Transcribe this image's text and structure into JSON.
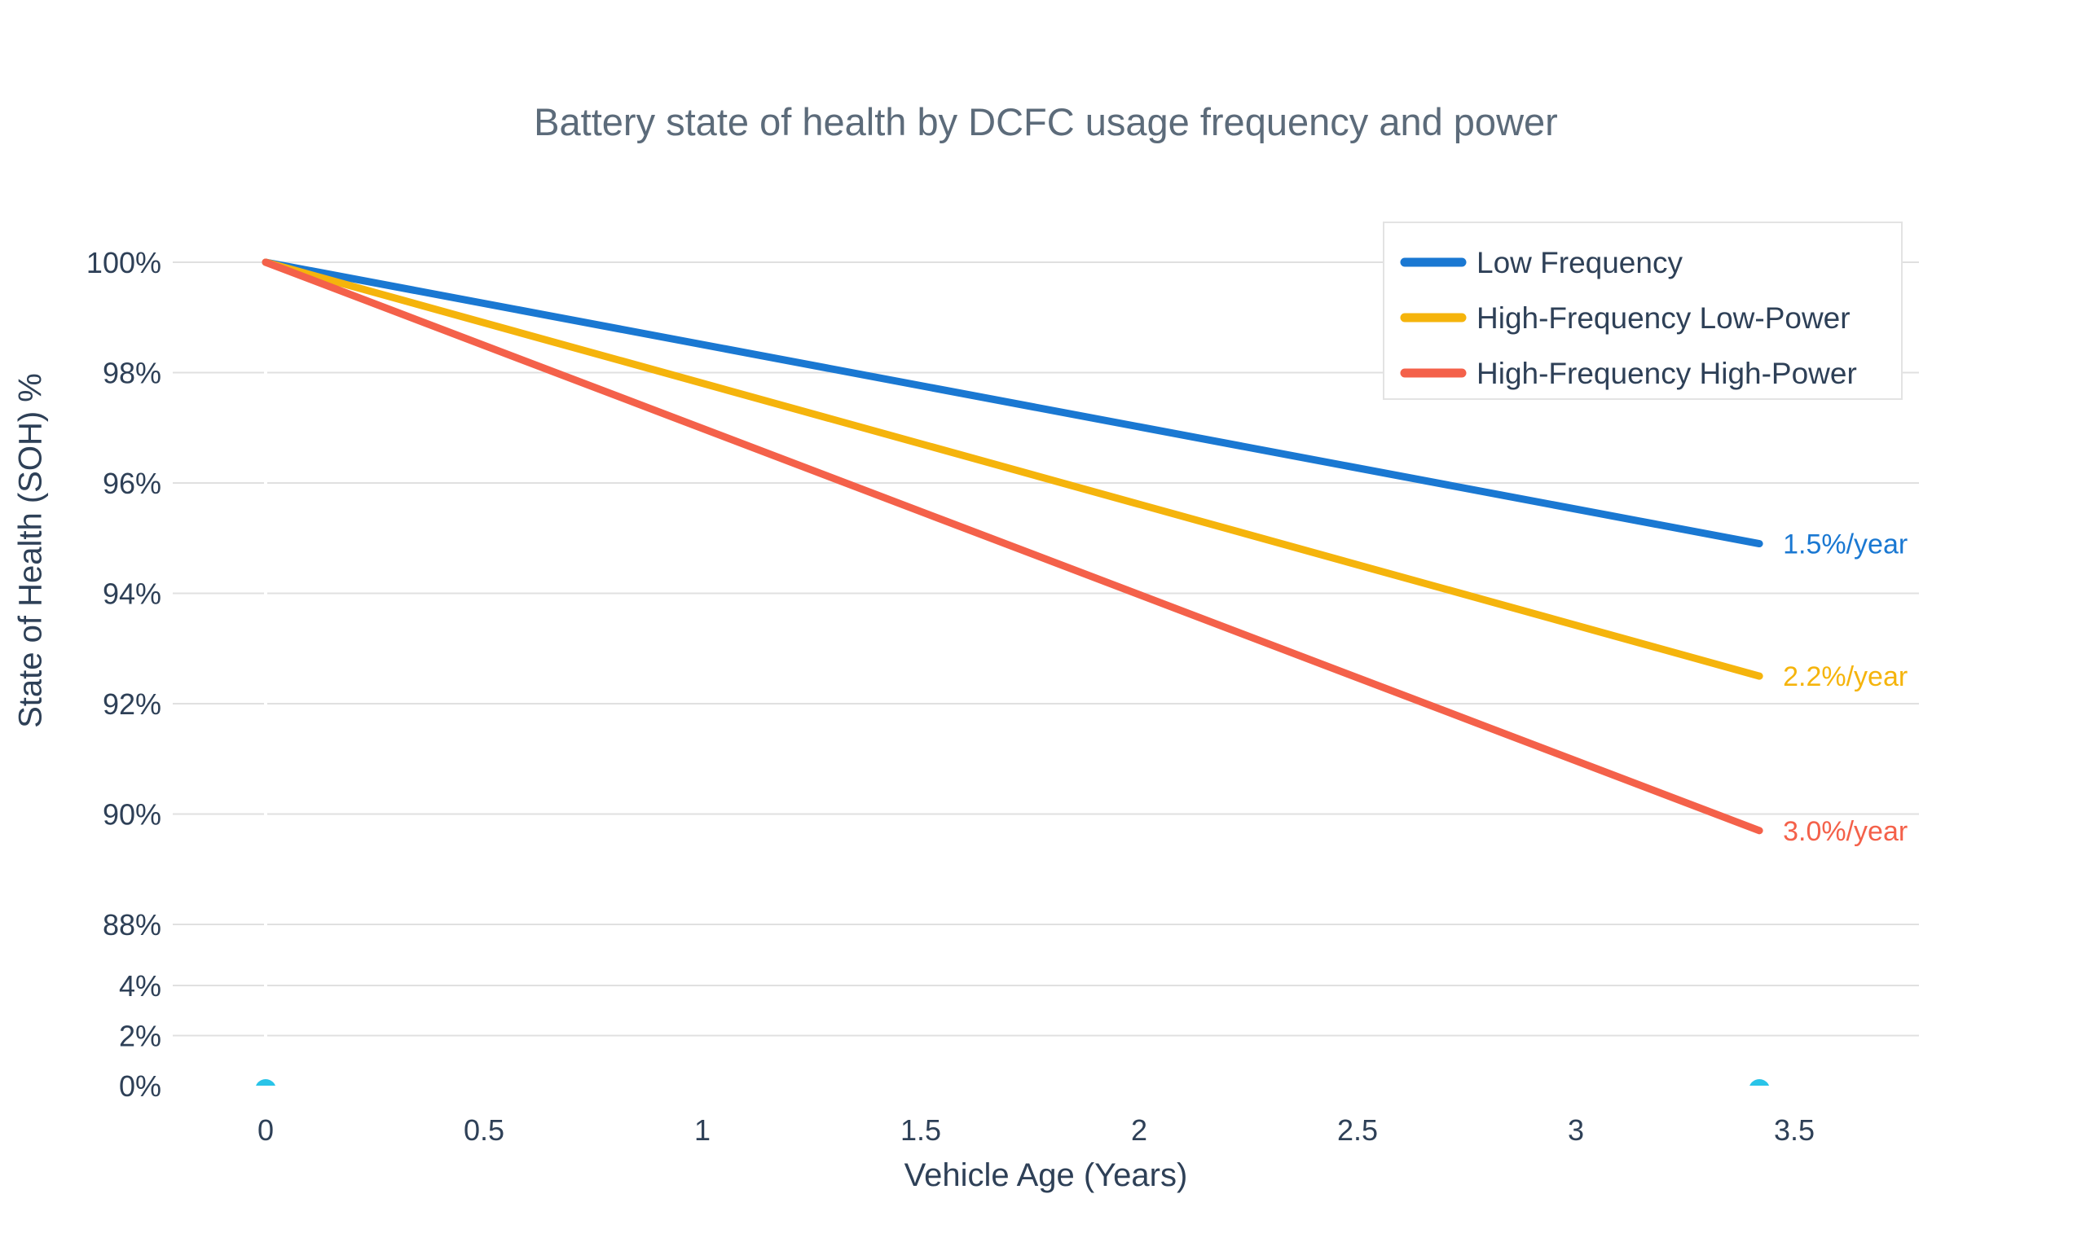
{
  "chart_data": {
    "type": "line",
    "title": "Battery state of health by DCFC usage frequency and power",
    "xlabel": "Vehicle Age (Years)",
    "ylabel": "State of Health (SOH) %",
    "x_ticks": [
      0,
      0.5,
      1,
      1.5,
      2,
      2.5,
      3,
      3.5
    ],
    "x_range": [
      0,
      3.8
    ],
    "y_axis": {
      "style": "broken",
      "upper_ticks": [
        100,
        98,
        96,
        94,
        92,
        90,
        88
      ],
      "lower_ticks": [
        4,
        2,
        0
      ],
      "tick_suffix": "%",
      "gridline_ticks_upper": [
        100,
        98,
        96,
        94,
        92,
        90,
        88
      ],
      "gridline_ticks_lower": [
        4,
        2
      ]
    },
    "grid": true,
    "legend_position": "top-right",
    "series": [
      {
        "name": "Low Frequency",
        "color": "#1a78d2",
        "degradation_pct_per_year": 1.5,
        "end_label": "1.5%/year",
        "x": [
          0,
          3.42
        ],
        "y": [
          100,
          94.9
        ]
      },
      {
        "name": "High-Frequency Low-Power",
        "color": "#f5b40c",
        "degradation_pct_per_year": 2.2,
        "end_label": "2.2%/year",
        "x": [
          0,
          3.42
        ],
        "y": [
          100,
          92.5
        ]
      },
      {
        "name": "High-Frequency High-Power",
        "color": "#f4614a",
        "degradation_pct_per_year": 3.0,
        "end_label": "3.0%/year",
        "x": [
          0,
          3.42
        ],
        "y": [
          100,
          89.7
        ]
      }
    ],
    "baseline_markers": {
      "color": "#29c4e8",
      "points": [
        {
          "x": 0,
          "y": 0
        },
        {
          "x": 3.42,
          "y": 0
        }
      ]
    },
    "style": {
      "text_color": "#2e4057",
      "title_color": "#5c6b7a",
      "grid_color": "#e0e0e0",
      "legend_border_color": "#e3e3e3",
      "background": "#ffffff"
    }
  }
}
